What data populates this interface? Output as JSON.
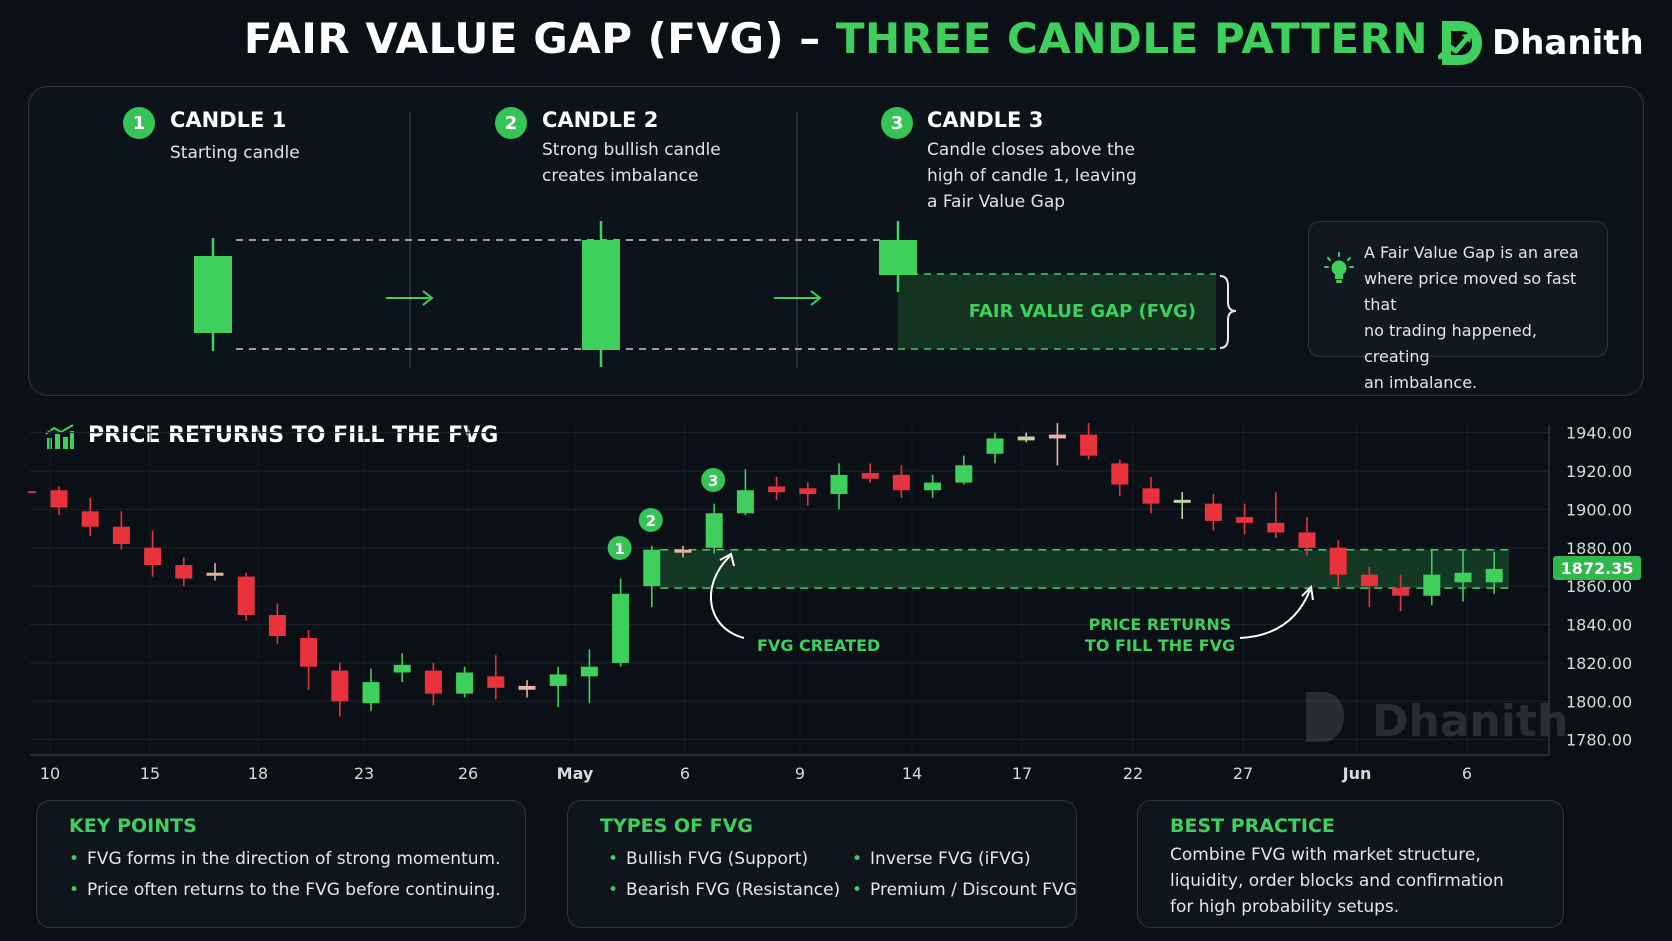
{
  "header": {
    "title_main": "FAIR VALUE GAP (FVG) – ",
    "title_accent": "THREE CANDLE PATTERN",
    "brand": "Dhanith"
  },
  "steps": [
    {
      "num": "1",
      "title": "CANDLE 1",
      "lines": [
        "Starting candle"
      ]
    },
    {
      "num": "2",
      "title": "CANDLE 2",
      "lines": [
        "Strong bullish candle",
        "creates imbalance"
      ]
    },
    {
      "num": "3",
      "title": "CANDLE 3",
      "lines": [
        "Candle closes above the",
        "high of candle 1, leaving",
        "a Fair Value Gap"
      ]
    }
  ],
  "fvg_label": "FAIR VALUE GAP (FVG)",
  "info": {
    "lines": [
      "A Fair Value Gap is an area",
      "where price moved so fast that",
      "no trading happened, creating",
      "an imbalance."
    ],
    "icon": "lightbulb-icon"
  },
  "chart_section_title": "PRICE RETURNS TO FILL THE FVG",
  "chart_data": {
    "type": "candlestick",
    "x_tick_labels": [
      "10",
      "15",
      "18",
      "23",
      "26",
      "May",
      "6",
      "9",
      "14",
      "17",
      "22",
      "27",
      "Jun",
      "6"
    ],
    "y_tick_labels": [
      "1940.00",
      "1920.00",
      "1900.00",
      "1880.00",
      "1860.00",
      "1840.00",
      "1820.00",
      "1800.00",
      "1780.00"
    ],
    "ylim": [
      1772,
      1944
    ],
    "current_price": "1872.35",
    "fvg_zone": [
      1859,
      1879
    ],
    "annotations": {
      "fvg_created": "FVG CREATED",
      "price_returns": [
        "PRICE RETURNS",
        "TO FILL THE FVG"
      ],
      "markers": [
        "1",
        "2",
        "3"
      ]
    },
    "watermark": "Dhanith",
    "candles": [
      {
        "o": 1910,
        "c": 1901,
        "h": 1912,
        "l": 1897
      },
      {
        "o": 1899,
        "c": 1891,
        "h": 1906,
        "l": 1886
      },
      {
        "o": 1891,
        "c": 1882,
        "h": 1899,
        "l": 1879
      },
      {
        "o": 1880,
        "c": 1871,
        "h": 1889,
        "l": 1865
      },
      {
        "o": 1871,
        "c": 1864,
        "h": 1875,
        "l": 1860
      },
      {
        "o": 1867,
        "c": 1866,
        "h": 1872,
        "l": 1863
      },
      {
        "o": 1865,
        "c": 1845,
        "h": 1867,
        "l": 1842
      },
      {
        "o": 1845,
        "c": 1834,
        "h": 1851,
        "l": 1830
      },
      {
        "o": 1833,
        "c": 1818,
        "h": 1837,
        "l": 1806
      },
      {
        "o": 1816,
        "c": 1800,
        "h": 1820,
        "l": 1792
      },
      {
        "o": 1799,
        "c": 1810,
        "h": 1817,
        "l": 1795
      },
      {
        "o": 1815,
        "c": 1819,
        "h": 1825,
        "l": 1810
      },
      {
        "o": 1816,
        "c": 1804,
        "h": 1820,
        "l": 1798
      },
      {
        "o": 1804,
        "c": 1815,
        "h": 1818,
        "l": 1802
      },
      {
        "o": 1813,
        "c": 1807,
        "h": 1824,
        "l": 1801
      },
      {
        "o": 1808,
        "c": 1806,
        "h": 1811,
        "l": 1802
      },
      {
        "o": 1808,
        "c": 1814,
        "h": 1818,
        "l": 1797
      },
      {
        "o": 1813,
        "c": 1818,
        "h": 1827,
        "l": 1799
      },
      {
        "o": 1820,
        "c": 1856,
        "h": 1864,
        "l": 1818
      },
      {
        "o": 1860,
        "c": 1879,
        "h": 1881,
        "l": 1849
      },
      {
        "o": 1879,
        "c": 1878,
        "h": 1881,
        "l": 1875
      },
      {
        "o": 1880,
        "c": 1898,
        "h": 1903,
        "l": 1877
      },
      {
        "o": 1898,
        "c": 1910,
        "h": 1921,
        "l": 1897
      },
      {
        "o": 1912,
        "c": 1909,
        "h": 1917,
        "l": 1905
      },
      {
        "o": 1911,
        "c": 1908,
        "h": 1914,
        "l": 1902
      },
      {
        "o": 1908,
        "c": 1918,
        "h": 1924,
        "l": 1900
      },
      {
        "o": 1919,
        "c": 1916,
        "h": 1924,
        "l": 1914
      },
      {
        "o": 1918,
        "c": 1910,
        "h": 1923,
        "l": 1906
      },
      {
        "o": 1910,
        "c": 1914,
        "h": 1918,
        "l": 1906
      },
      {
        "o": 1914,
        "c": 1923,
        "h": 1928,
        "l": 1913
      },
      {
        "o": 1929,
        "c": 1937,
        "h": 1940,
        "l": 1924
      },
      {
        "o": 1936,
        "c": 1938,
        "h": 1940,
        "l": 1935
      },
      {
        "o": 1939,
        "c": 1937,
        "h": 1945,
        "l": 1923
      },
      {
        "o": 1939,
        "c": 1928,
        "h": 1945,
        "l": 1926
      },
      {
        "o": 1924,
        "c": 1913,
        "h": 1926,
        "l": 1907
      },
      {
        "o": 1911,
        "c": 1903,
        "h": 1917,
        "l": 1898
      },
      {
        "o": 1905,
        "c": 1905,
        "h": 1909,
        "l": 1895
      },
      {
        "o": 1903,
        "c": 1894,
        "h": 1908,
        "l": 1889
      },
      {
        "o": 1896,
        "c": 1893,
        "h": 1903,
        "l": 1887
      },
      {
        "o": 1893,
        "c": 1888,
        "h": 1909,
        "l": 1885
      },
      {
        "o": 1888,
        "c": 1880,
        "h": 1896,
        "l": 1876
      },
      {
        "o": 1880,
        "c": 1866,
        "h": 1884,
        "l": 1860
      },
      {
        "o": 1866,
        "c": 1860,
        "h": 1870,
        "l": 1849
      },
      {
        "o": 1859,
        "c": 1855,
        "h": 1866,
        "l": 1847
      },
      {
        "o": 1855,
        "c": 1866,
        "h": 1879,
        "l": 1850
      },
      {
        "o": 1862,
        "c": 1867,
        "h": 1879,
        "l": 1852
      },
      {
        "o": 1862,
        "c": 1869,
        "h": 1878,
        "l": 1856
      }
    ]
  },
  "cards": {
    "key_points": {
      "title": "KEY POINTS",
      "items": [
        "FVG forms in the direction of strong momentum.",
        "Price often returns to the FVG before continuing."
      ]
    },
    "types": {
      "title": "TYPES OF FVG",
      "items": [
        "Bullish FVG (Support)",
        "Bearish FVG (Resistance)",
        "Inverse FVG (iFVG)",
        "Premium / Discount FVG"
      ]
    },
    "best_practice": {
      "title": "BEST PRACTICE",
      "lines": [
        "Combine FVG with market structure,",
        "liquidity, order blocks and confirmation",
        "for high probability setups."
      ]
    }
  },
  "colors": {
    "green": "#3ecf5c",
    "red": "#e8323c",
    "bg": "#0b1016",
    "panel_border": "#2c3540"
  }
}
